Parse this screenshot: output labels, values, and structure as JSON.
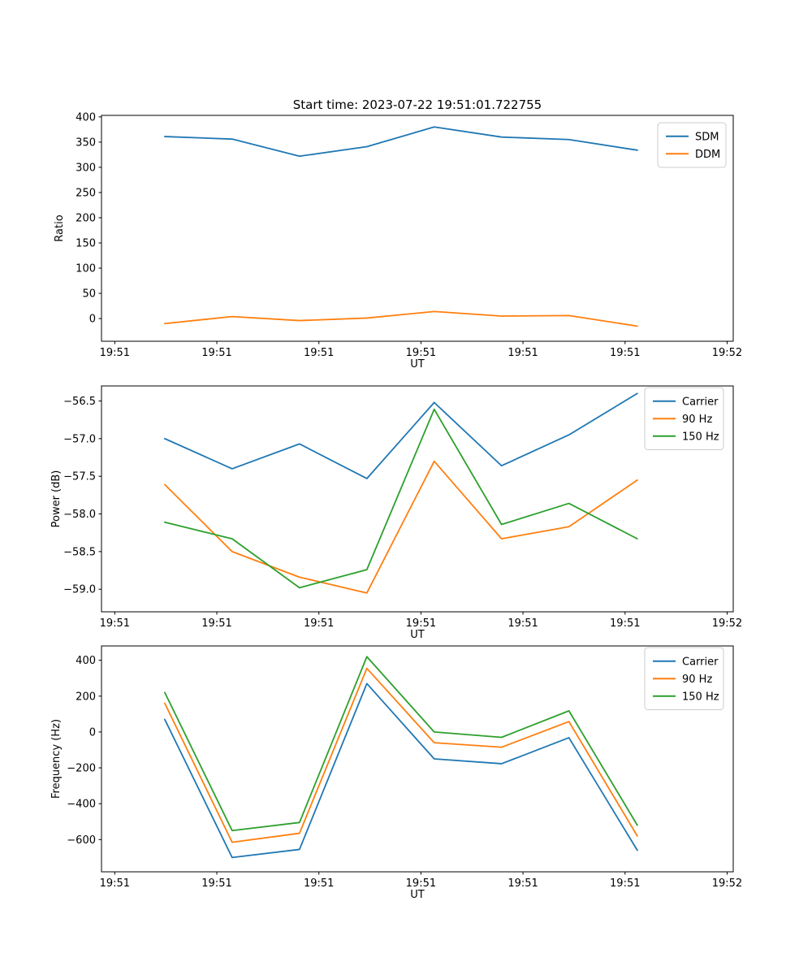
{
  "figure": {
    "title": "Start time: 2023-07-22 19:51:01.722755",
    "background": "#ffffff",
    "text_color": "#000000"
  },
  "x_axis": {
    "label": "UT",
    "tick_labels": [
      "19:51",
      "19:51",
      "19:51",
      "19:51",
      "19:51",
      "19:51",
      "19:52"
    ],
    "tick_seconds": [
      0,
      10,
      20,
      30,
      40,
      50,
      60
    ],
    "xlim_seconds": [
      -1.3,
      60.6
    ]
  },
  "sample_seconds": [
    4.9,
    11.5,
    18.1,
    24.7,
    31.3,
    37.9,
    44.5,
    51.2
  ],
  "palette": {
    "blue": "#1f77b4",
    "orange": "#ff7f0e",
    "green": "#2ca02c"
  },
  "chart_data": [
    {
      "type": "line",
      "title": "Start time: 2023-07-22 19:51:01.722755",
      "xlabel": "UT",
      "ylabel": "Ratio",
      "x_tick_labels": [
        "19:51",
        "19:51",
        "19:51",
        "19:51",
        "19:51",
        "19:51",
        "19:52"
      ],
      "x_seconds": [
        4.9,
        11.5,
        18.1,
        24.7,
        31.3,
        37.9,
        44.5,
        51.2
      ],
      "series": [
        {
          "name": "SDM",
          "color": "#1f77b4",
          "values": [
            361,
            356,
            322,
            341,
            380,
            360,
            355,
            334
          ]
        },
        {
          "name": "DDM",
          "color": "#ff7f0e",
          "values": [
            -10,
            4,
            -4,
            1,
            14,
            5,
            6,
            -15
          ]
        }
      ],
      "yticks": [
        400,
        350,
        300,
        250,
        200,
        150,
        100,
        50,
        0
      ],
      "ytick_labels": [
        "400",
        "350",
        "300",
        "250",
        "200",
        "150",
        "100",
        "50",
        "0"
      ],
      "ylim": [
        -45,
        403
      ],
      "legend": {
        "position": "upper right",
        "labels": [
          "SDM",
          "DDM"
        ]
      },
      "grid": false
    },
    {
      "type": "line",
      "title": "",
      "xlabel": "UT",
      "ylabel": "Power (dB)",
      "x_tick_labels": [
        "19:51",
        "19:51",
        "19:51",
        "19:51",
        "19:51",
        "19:51",
        "19:52"
      ],
      "x_seconds": [
        4.9,
        11.5,
        18.1,
        24.7,
        31.3,
        37.9,
        44.5,
        51.2
      ],
      "series": [
        {
          "name": "Carrier",
          "color": "#1f77b4",
          "values": [
            -57.0,
            -57.4,
            -57.07,
            -57.53,
            -56.52,
            -57.36,
            -56.95,
            -56.4
          ]
        },
        {
          "name": "90 Hz",
          "color": "#ff7f0e",
          "values": [
            -57.61,
            -58.5,
            -58.84,
            -59.05,
            -57.3,
            -58.33,
            -58.17,
            -57.55
          ]
        },
        {
          "name": "150 Hz",
          "color": "#2ca02c",
          "values": [
            -58.11,
            -58.33,
            -58.98,
            -58.74,
            -56.61,
            -58.14,
            -57.86,
            -58.33
          ]
        }
      ],
      "yticks": [
        -56.5,
        -57.0,
        -57.5,
        -58.0,
        -58.5,
        -59.0
      ],
      "ytick_labels": [
        "−56.5",
        "−57.0",
        "−57.5",
        "−58.0",
        "−58.5",
        "−59.0"
      ],
      "ylim": [
        -59.3,
        -56.3
      ],
      "legend": {
        "position": "upper right",
        "labels": [
          "Carrier",
          "90 Hz",
          "150 Hz"
        ]
      },
      "grid": false
    },
    {
      "type": "line",
      "title": "",
      "xlabel": "UT",
      "ylabel": "Frequency (Hz)",
      "x_tick_labels": [
        "19:51",
        "19:51",
        "19:51",
        "19:51",
        "19:51",
        "19:51",
        "19:52"
      ],
      "x_seconds": [
        4.9,
        11.5,
        18.1,
        24.7,
        31.3,
        37.9,
        44.5,
        51.2
      ],
      "series": [
        {
          "name": "Carrier",
          "color": "#1f77b4",
          "values": [
            70,
            -700,
            -655,
            270,
            -150,
            -177,
            -32,
            -660
          ]
        },
        {
          "name": "90 Hz",
          "color": "#ff7f0e",
          "values": [
            160,
            -615,
            -565,
            355,
            -60,
            -85,
            58,
            -580
          ]
        },
        {
          "name": "150 Hz",
          "color": "#2ca02c",
          "values": [
            220,
            -550,
            -505,
            420,
            0,
            -30,
            118,
            -520
          ]
        }
      ],
      "yticks": [
        400,
        200,
        0,
        -200,
        -400,
        -600
      ],
      "ytick_labels": [
        "400",
        "200",
        "0",
        "−200",
        "−400",
        "−600"
      ],
      "ylim": [
        -780,
        480
      ],
      "legend": {
        "position": "upper right",
        "labels": [
          "Carrier",
          "90 Hz",
          "150 Hz"
        ]
      },
      "grid": false
    }
  ]
}
